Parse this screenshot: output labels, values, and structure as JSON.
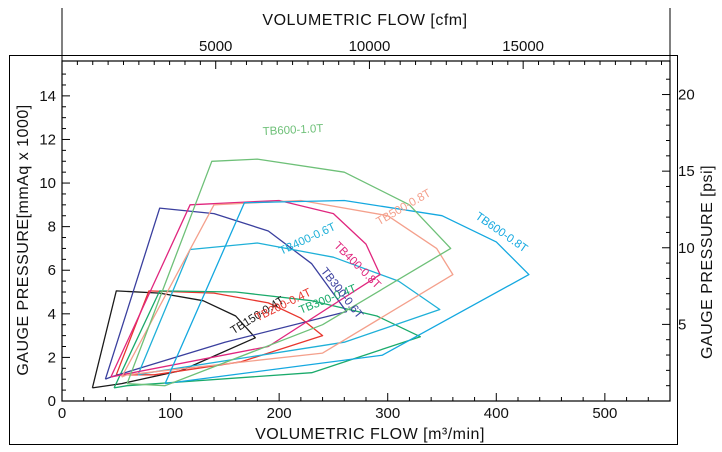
{
  "chart_data": {
    "type": "line",
    "bottom_axis": {
      "label": "VOLUMETRIC FLOW [m³/min]",
      "range": [
        0,
        560
      ],
      "ticks": [
        0,
        100,
        200,
        300,
        400,
        500
      ]
    },
    "top_axis": {
      "label": "VOLUMETRIC FLOW [cfm]",
      "ticks": [
        5000,
        10000,
        15000
      ]
    },
    "left_axis": {
      "label": "GAUGE PRESSURE[mmAq x 1000]",
      "range": [
        0,
        15.6
      ],
      "ticks": [
        0,
        2,
        4,
        6,
        8,
        10,
        12,
        14
      ]
    },
    "right_axis": {
      "label": "GAUGE PRESSURE [psi]",
      "ticks": [
        5,
        10,
        15,
        20
      ]
    },
    "grid": false,
    "legend": "none (series labelled inline)",
    "series": [
      {
        "name": "TB150-0.4T",
        "color": "#1a1a1a",
        "x": [
          28,
          50,
          90,
          130,
          160,
          178,
          110,
          55,
          28
        ],
        "y": [
          0.6,
          5.05,
          4.95,
          4.6,
          3.9,
          2.9,
          1.4,
          0.8,
          0.6
        ]
      },
      {
        "name": "TB200-0.4T",
        "color": "#e8362e",
        "x": [
          50,
          80,
          140,
          190,
          220,
          240,
          165,
          85,
          50
        ],
        "y": [
          1.2,
          5.05,
          4.95,
          4.5,
          3.8,
          3.0,
          1.8,
          1.2,
          1.2
        ]
      },
      {
        "name": "TB300-0.4T",
        "color": "#1aaa6b",
        "x": [
          48,
          90,
          160,
          230,
          290,
          330,
          230,
          60,
          48
        ],
        "y": [
          0.6,
          5.05,
          5.0,
          4.6,
          3.9,
          2.95,
          1.3,
          0.7,
          0.6
        ]
      },
      {
        "name": "TB300-0.6T",
        "color": "#3a3f9e",
        "x": [
          40,
          90,
          140,
          190,
          230,
          262,
          150,
          45,
          40
        ],
        "y": [
          1.0,
          8.85,
          8.6,
          7.8,
          6.3,
          4.1,
          2.7,
          1.1,
          1.0
        ]
      },
      {
        "name": "TB400-0.6T",
        "color": "#1fb0d8",
        "x": [
          70,
          118,
          180,
          250,
          310,
          348,
          260,
          80,
          70
        ],
        "y": [
          1.2,
          6.95,
          7.25,
          6.6,
          5.5,
          4.2,
          2.7,
          1.3,
          1.2
        ]
      },
      {
        "name": "TB400-0.8T",
        "color": "#e0267e",
        "x": [
          45,
          118,
          200,
          250,
          280,
          293,
          190,
          55,
          45
        ],
        "y": [
          1.1,
          9.0,
          9.2,
          8.6,
          7.2,
          5.8,
          2.5,
          1.2,
          1.1
        ]
      },
      {
        "name": "TB500-0.8T",
        "color": "#f4a08c",
        "x": [
          55,
          140,
          220,
          300,
          345,
          360,
          240,
          60,
          55
        ],
        "y": [
          1.1,
          9.0,
          9.2,
          8.5,
          7.0,
          5.8,
          2.2,
          1.2,
          1.1
        ]
      },
      {
        "name": "TB600-0.8T",
        "color": "#14a8e0",
        "x": [
          95,
          168,
          260,
          350,
          400,
          430,
          295,
          95
        ],
        "y": [
          0.8,
          9.1,
          9.2,
          8.5,
          7.3,
          5.8,
          2.1,
          0.8
        ]
      },
      {
        "name": "TB600-1.0T",
        "color": "#6ec078",
        "x": [
          60,
          138,
          180,
          260,
          320,
          358,
          240,
          95,
          60
        ],
        "y": [
          0.8,
          11.0,
          11.1,
          10.5,
          9.0,
          7.0,
          3.5,
          0.7,
          0.8
        ]
      }
    ]
  }
}
